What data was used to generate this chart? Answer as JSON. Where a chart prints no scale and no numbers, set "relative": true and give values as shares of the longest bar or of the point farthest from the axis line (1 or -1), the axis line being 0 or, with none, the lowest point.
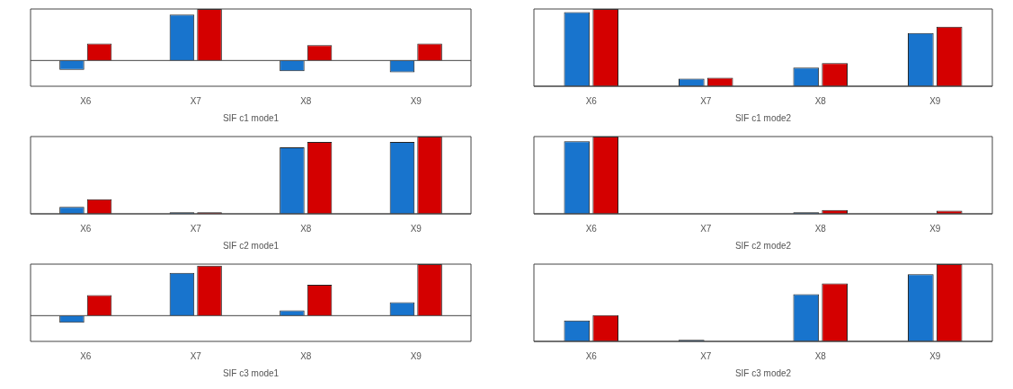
{
  "chart_data": [
    {
      "type": "bar",
      "relative": true,
      "xlabel": "SIF c1 mode1",
      "categories": [
        "X6",
        "X7",
        "X8",
        "X9"
      ],
      "series": [
        {
          "color": "#1874cd",
          "values": [
            -0.18,
            0.89,
            -0.21,
            -0.23
          ]
        },
        {
          "color": "#d40000",
          "values": [
            0.33,
            1,
            0.3,
            0.33
          ]
        }
      ]
    },
    {
      "type": "bar",
      "relative": true,
      "xlabel": "SIF c1 mode2",
      "categories": [
        "X6",
        "X7",
        "X8",
        "X9"
      ],
      "series": [
        {
          "color": "#1874cd",
          "values": [
            0.96,
            0.1,
            0.24,
            0.69
          ]
        },
        {
          "color": "#d40000",
          "values": [
            1,
            0.11,
            0.3,
            0.77
          ]
        }
      ]
    },
    {
      "type": "bar",
      "relative": true,
      "xlabel": "SIF c2 mode1",
      "categories": [
        "X6",
        "X7",
        "X8",
        "X9"
      ],
      "series": [
        {
          "color": "#1874cd",
          "values": [
            0.09,
            0.02,
            0.86,
            0.93
          ]
        },
        {
          "color": "#d40000",
          "values": [
            0.19,
            0.02,
            0.93,
            1
          ]
        }
      ]
    },
    {
      "type": "bar",
      "relative": true,
      "xlabel": "SIF c2 mode2",
      "categories": [
        "X6",
        "X7",
        "X8",
        "X9"
      ],
      "series": [
        {
          "color": "#1874cd",
          "values": [
            0.94,
            0,
            0.02,
            0
          ]
        },
        {
          "color": "#d40000",
          "values": [
            1,
            0,
            0.05,
            0.04
          ]
        }
      ]
    },
    {
      "type": "bar",
      "relative": true,
      "xlabel": "SIF c3 mode1",
      "categories": [
        "X6",
        "X7",
        "X8",
        "X9"
      ],
      "series": [
        {
          "color": "#1874cd",
          "values": [
            -0.14,
            0.83,
            0.1,
            0.26
          ]
        },
        {
          "color": "#d40000",
          "values": [
            0.4,
            0.97,
            0.6,
            1
          ]
        }
      ]
    },
    {
      "type": "bar",
      "relative": true,
      "xlabel": "SIF c3 mode2",
      "categories": [
        "X6",
        "X7",
        "X8",
        "X9"
      ],
      "series": [
        {
          "color": "#1874cd",
          "values": [
            0.27,
            0.02,
            0.61,
            0.87
          ]
        },
        {
          "color": "#d40000",
          "values": [
            0.34,
            0,
            0.75,
            1
          ]
        }
      ]
    }
  ]
}
